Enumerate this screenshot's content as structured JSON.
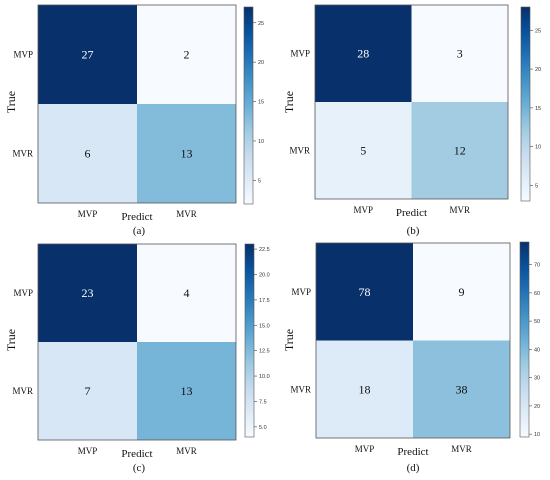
{
  "chart_data": [
    {
      "type": "heatmap",
      "caption": "(a)",
      "x_categories": [
        "MVP",
        "MVR"
      ],
      "y_categories": [
        "MVP",
        "MVR"
      ],
      "matrix": [
        [
          27,
          2
        ],
        [
          6,
          13
        ]
      ],
      "xlabel": "Predict",
      "ylabel": "True",
      "colorbar": {
        "min": 2,
        "max": 27,
        "ticks": [
          "5",
          "10",
          "15",
          "20",
          "25"
        ],
        "colormap": "Blues"
      },
      "grid": false
    },
    {
      "type": "heatmap",
      "caption": "(b)",
      "x_categories": [
        "MVP",
        "MVR"
      ],
      "y_categories": [
        "MVP",
        "MVR"
      ],
      "matrix": [
        [
          28,
          3
        ],
        [
          5,
          12
        ]
      ],
      "xlabel": "Predict",
      "ylabel": "True",
      "colorbar": {
        "min": 3,
        "max": 28,
        "ticks": [
          "5",
          "10",
          "15",
          "20",
          "25"
        ],
        "colormap": "Blues"
      },
      "grid": false
    },
    {
      "type": "heatmap",
      "caption": "(c)",
      "x_categories": [
        "MVP",
        "MVR"
      ],
      "y_categories": [
        "MVP",
        "MVR"
      ],
      "matrix": [
        [
          23,
          4
        ],
        [
          7,
          13
        ]
      ],
      "xlabel": "Predict",
      "ylabel": "True",
      "colorbar": {
        "min": 4,
        "max": 23,
        "ticks": [
          "5.0",
          "7.5",
          "10.0",
          "12.5",
          "15.0",
          "17.5",
          "20.0",
          "22.5"
        ],
        "colormap": "Blues"
      },
      "grid": false
    },
    {
      "type": "heatmap",
      "caption": "(d)",
      "x_categories": [
        "MVP",
        "MVR"
      ],
      "y_categories": [
        "MVP",
        "MVR"
      ],
      "matrix": [
        [
          78,
          9
        ],
        [
          18,
          38
        ]
      ],
      "xlabel": "Predict",
      "ylabel": "True",
      "colorbar": {
        "min": 9,
        "max": 78,
        "ticks": [
          "10",
          "20",
          "30",
          "40",
          "50",
          "60",
          "70"
        ],
        "colormap": "Blues"
      },
      "grid": false
    }
  ]
}
